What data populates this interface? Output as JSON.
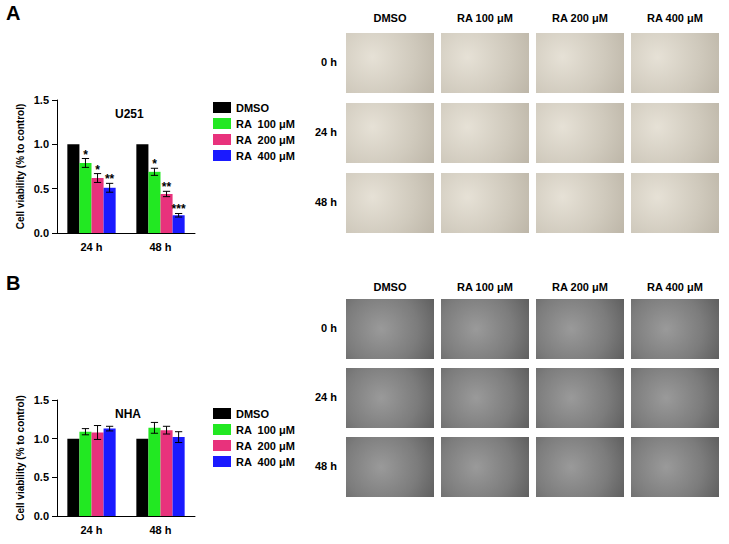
{
  "chart_data": [
    {
      "type": "bar",
      "title": "U251",
      "categories": [
        "24 h",
        "48 h"
      ],
      "y_label": "Cell viability (% to control)",
      "series": [
        {
          "name": "DMSO",
          "color": "#000000",
          "values": [
            1.0,
            1.0
          ],
          "errors": [
            0,
            0
          ]
        },
        {
          "name": "RA  100 μM",
          "color": "#22e822",
          "values": [
            0.79,
            0.69
          ],
          "errors": [
            0.05,
            0.04
          ],
          "significance": [
            "*",
            "*"
          ]
        },
        {
          "name": "RA  200 μM",
          "color": "#e8327c",
          "values": [
            0.62,
            0.44
          ],
          "errors": [
            0.05,
            0.03
          ],
          "significance": [
            "*",
            "**"
          ]
        },
        {
          "name": "RA  400 μM",
          "color": "#1a1aff",
          "values": [
            0.51,
            0.2
          ],
          "errors": [
            0.05,
            0.02
          ],
          "significance": [
            "**",
            "***"
          ]
        }
      ],
      "ylim": [
        0,
        1.5
      ],
      "yticks": [
        {
          "value": 0,
          "label": "0.0"
        },
        {
          "value": 0.5,
          "label": "0.5"
        },
        {
          "value": 1.0,
          "label": "1.0"
        },
        {
          "value": 1.5,
          "label": "1.5"
        }
      ],
      "grid": false,
      "legend": "right"
    },
    {
      "type": "bar",
      "title": "NHA",
      "categories": [
        "24 h",
        "48 h"
      ],
      "y_label": "Cell viability (% to control)",
      "series": [
        {
          "name": "DMSO",
          "color": "#000000",
          "values": [
            1.0,
            1.0
          ],
          "errors": [
            0,
            0
          ]
        },
        {
          "name": "RA  100 μM",
          "color": "#22e822",
          "values": [
            1.09,
            1.14
          ],
          "errors": [
            0.04,
            0.07
          ]
        },
        {
          "name": "RA  200 μM",
          "color": "#e8327c",
          "values": [
            1.08,
            1.11
          ],
          "errors": [
            0.09,
            0.05
          ]
        },
        {
          "name": "RA  400 μM",
          "color": "#1a1aff",
          "values": [
            1.13,
            1.02
          ],
          "errors": [
            0.03,
            0.07
          ]
        }
      ],
      "ylim": [
        0,
        1.5
      ],
      "yticks": [
        {
          "value": 0,
          "label": "0.0"
        },
        {
          "value": 0.5,
          "label": "0.5"
        },
        {
          "value": 1.0,
          "label": "1.0"
        },
        {
          "value": 1.5,
          "label": "1.5"
        }
      ],
      "grid": false,
      "legend": "right"
    }
  ],
  "figure": {
    "panels": [
      {
        "label": "A",
        "micrographs": {
          "columns": [
            "DMSO",
            "RA 100 μM",
            "RA 200 μM",
            "RA 400 μM"
          ],
          "rows": [
            "0 h",
            "24 h",
            "48 h"
          ]
        }
      },
      {
        "label": "B",
        "micrographs": {
          "columns": [
            "DMSO",
            "RA 100 μM",
            "RA 200 μM",
            "RA 400 μM"
          ],
          "rows": [
            "0 h",
            "24 h",
            "48 h"
          ]
        }
      }
    ]
  }
}
